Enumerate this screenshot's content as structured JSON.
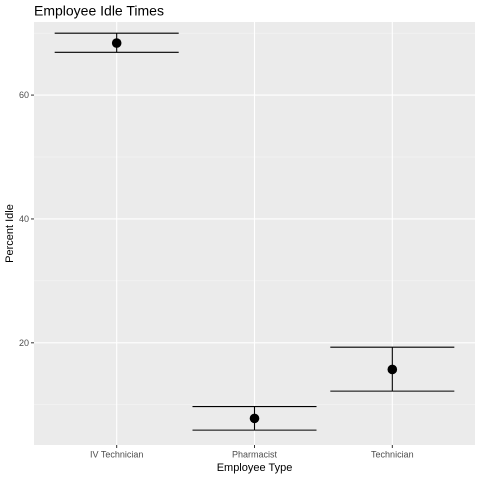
{
  "chart_data": {
    "type": "scatter",
    "title": "Employee Idle Times",
    "xlabel": "Employee Type",
    "ylabel": "Percent Idle",
    "categories": [
      "IV Technician",
      "Pharmacist",
      "Technician"
    ],
    "points": [
      {
        "category": "IV Technician",
        "y": 68.4,
        "lower": 66.9,
        "upper": 70.0
      },
      {
        "category": "Pharmacist",
        "y": 7.8,
        "lower": 5.9,
        "upper": 9.7
      },
      {
        "category": "Technician",
        "y": 15.7,
        "lower": 12.2,
        "upper": 19.3
      }
    ],
    "ylim": [
      3.5,
      71.8
    ],
    "yticks": [
      20,
      40,
      60
    ],
    "grid": true,
    "colors": {
      "panel": "#ebebeb",
      "grid_major": "#ffffff",
      "point": "#000000",
      "errorbar": "#000000"
    }
  }
}
